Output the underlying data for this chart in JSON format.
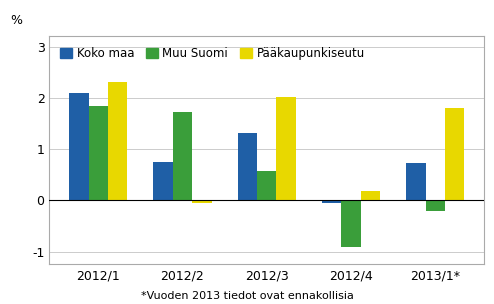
{
  "categories": [
    "2012/1",
    "2012/2",
    "2012/3",
    "2012/4",
    "2013/1*"
  ],
  "series": {
    "Koko maa": [
      2.1,
      0.75,
      1.32,
      -0.05,
      0.74
    ],
    "Muu Suomi": [
      1.85,
      1.72,
      0.57,
      -0.9,
      -0.2
    ],
    "Pääkaupunkiseutu": [
      2.32,
      -0.05,
      2.02,
      0.19,
      1.8
    ]
  },
  "colors": {
    "Koko maa": "#1f5fa6",
    "Muu Suomi": "#3a9e3a",
    "Pääkaupunkiseutu": "#e8d800"
  },
  "ylabel": "%",
  "ylim": [
    -1.25,
    3.2
  ],
  "yticks": [
    -1,
    0,
    1,
    2,
    3
  ],
  "footnote": "*Vuoden 2013 tiedot ovat ennakollisia",
  "background_color": "#ffffff",
  "grid_color": "#cccccc"
}
